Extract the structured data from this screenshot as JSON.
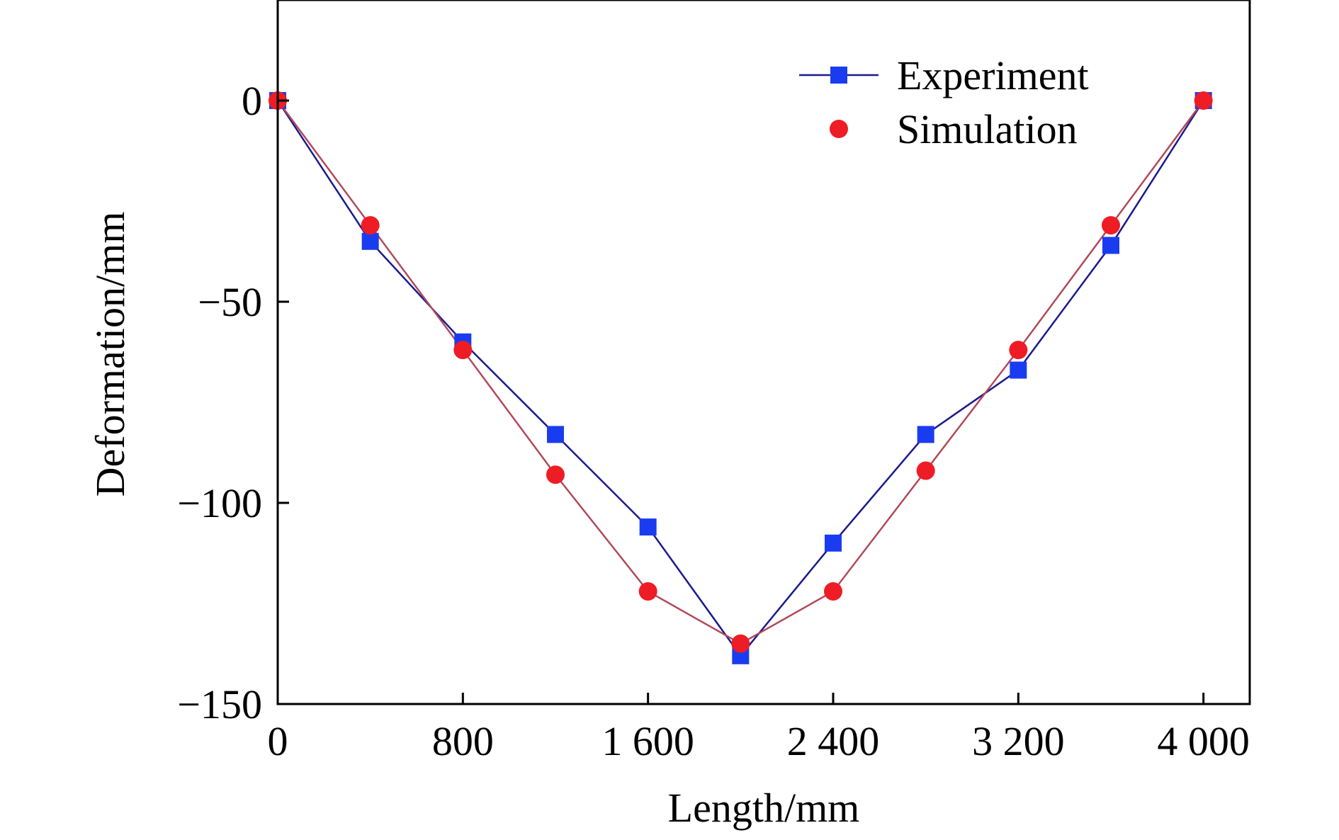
{
  "chart_data": {
    "type": "line",
    "xlabel": "Length/mm",
    "ylabel": "Deformation/mm",
    "xlim": [
      0,
      4200
    ],
    "ylim": [
      -150,
      25
    ],
    "xticks": [
      0,
      800,
      1600,
      2400,
      3200,
      4000
    ],
    "xtick_labels": [
      "0",
      "800",
      "1 600",
      "2 400",
      "3 200",
      "4 000"
    ],
    "yticks": [
      0,
      -50,
      -100,
      -150
    ],
    "ytick_labels": [
      "0",
      "−50",
      "−100",
      "−150"
    ],
    "grid": false,
    "legend_position": "top-right",
    "series": [
      {
        "name": "Experiment",
        "marker": "square",
        "color": "#1a3cf0",
        "line_color": "#1a1a8c",
        "x": [
          0,
          400,
          800,
          1200,
          1600,
          2000,
          2400,
          2800,
          3200,
          3600,
          4000
        ],
        "values": [
          0,
          -35,
          -60,
          -83,
          -106,
          -138,
          -110,
          -83,
          -67,
          -36,
          0
        ]
      },
      {
        "name": "Simulation",
        "marker": "circle",
        "color": "#ee1c25",
        "line_color": "#b04a5a",
        "x": [
          0,
          400,
          800,
          1200,
          1600,
          2000,
          2400,
          2800,
          3200,
          3600,
          4000
        ],
        "values": [
          0,
          -31,
          -62,
          -93,
          -122,
          -135,
          -122,
          -92,
          -62,
          -31,
          0
        ]
      }
    ]
  }
}
